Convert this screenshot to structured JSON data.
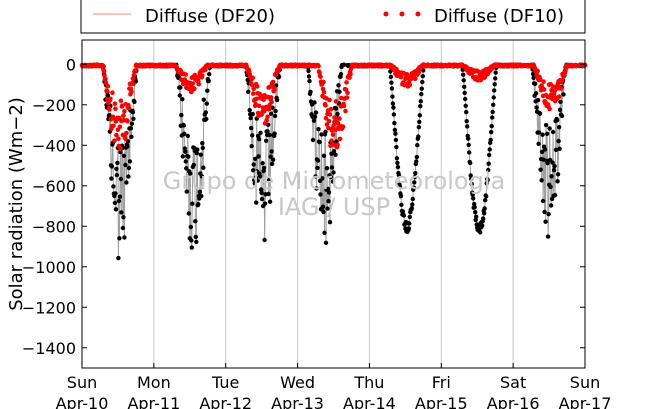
{
  "chart_data": {
    "type": "scatter",
    "title": "",
    "ylabel": "Solar radiation (Wm−2)",
    "xlabel": "",
    "ylim": [
      -1500,
      120
    ],
    "xlim": [
      0,
      7
    ],
    "yticks": [
      0,
      -200,
      -400,
      -600,
      -800,
      -1000,
      -1200,
      -1400
    ],
    "ytick_labels": [
      "0",
      "−200",
      "−400",
      "−600",
      "−800",
      "−1000",
      "−1200",
      "−1400"
    ],
    "xticks": [
      0,
      1,
      2,
      3,
      4,
      5,
      6,
      7
    ],
    "xtick_labels": [
      {
        "day": "Sun",
        "date": "Apr-10"
      },
      {
        "day": "Mon",
        "date": "Apr-11"
      },
      {
        "day": "Tue",
        "date": "Apr-12"
      },
      {
        "day": "Wed",
        "date": "Apr-13"
      },
      {
        "day": "Thu",
        "date": "Apr-14"
      },
      {
        "day": "Fri",
        "date": "Apr-15"
      },
      {
        "day": "Sat",
        "date": "Apr-16"
      },
      {
        "day": "Sun",
        "date": "Apr-17"
      }
    ],
    "grid": "x-only",
    "legend_placement": "top (above plot)",
    "watermark": [
      "Grupo de Micrometeorologia",
      "IAG / USP"
    ],
    "colors": {
      "df20": "#000000",
      "df20_line": "#a0a0a0",
      "df10": "#ff0000",
      "legend_line": "#ff8080"
    },
    "series": [
      {
        "name": "Diffuse (DF20)",
        "daily_min": [
          {
            "day": 0,
            "center": 0.53,
            "min": -990
          },
          {
            "day": 1,
            "center": 1.55,
            "min": -940
          },
          {
            "day": 2,
            "center": 2.52,
            "min": -950
          },
          {
            "day": 3,
            "center": 3.38,
            "min": -940
          },
          {
            "day": 4,
            "center": 4.52,
            "min": -830
          },
          {
            "day": 5,
            "center": 5.53,
            "min": -840
          },
          {
            "day": 6,
            "center": 6.5,
            "min": -870
          }
        ]
      },
      {
        "name": "Diffuse (DF10)",
        "daily_min": [
          {
            "day": 0,
            "center": 0.52,
            "min": -450
          },
          {
            "day": 1,
            "center": 1.52,
            "min": -140
          },
          {
            "day": 2,
            "center": 2.52,
            "min": -310
          },
          {
            "day": 3,
            "center": 3.52,
            "min": -460
          },
          {
            "day": 4,
            "center": 4.52,
            "min": -110
          },
          {
            "day": 5,
            "center": 5.52,
            "min": -80
          },
          {
            "day": 6,
            "center": 6.52,
            "min": -240
          }
        ]
      }
    ]
  }
}
